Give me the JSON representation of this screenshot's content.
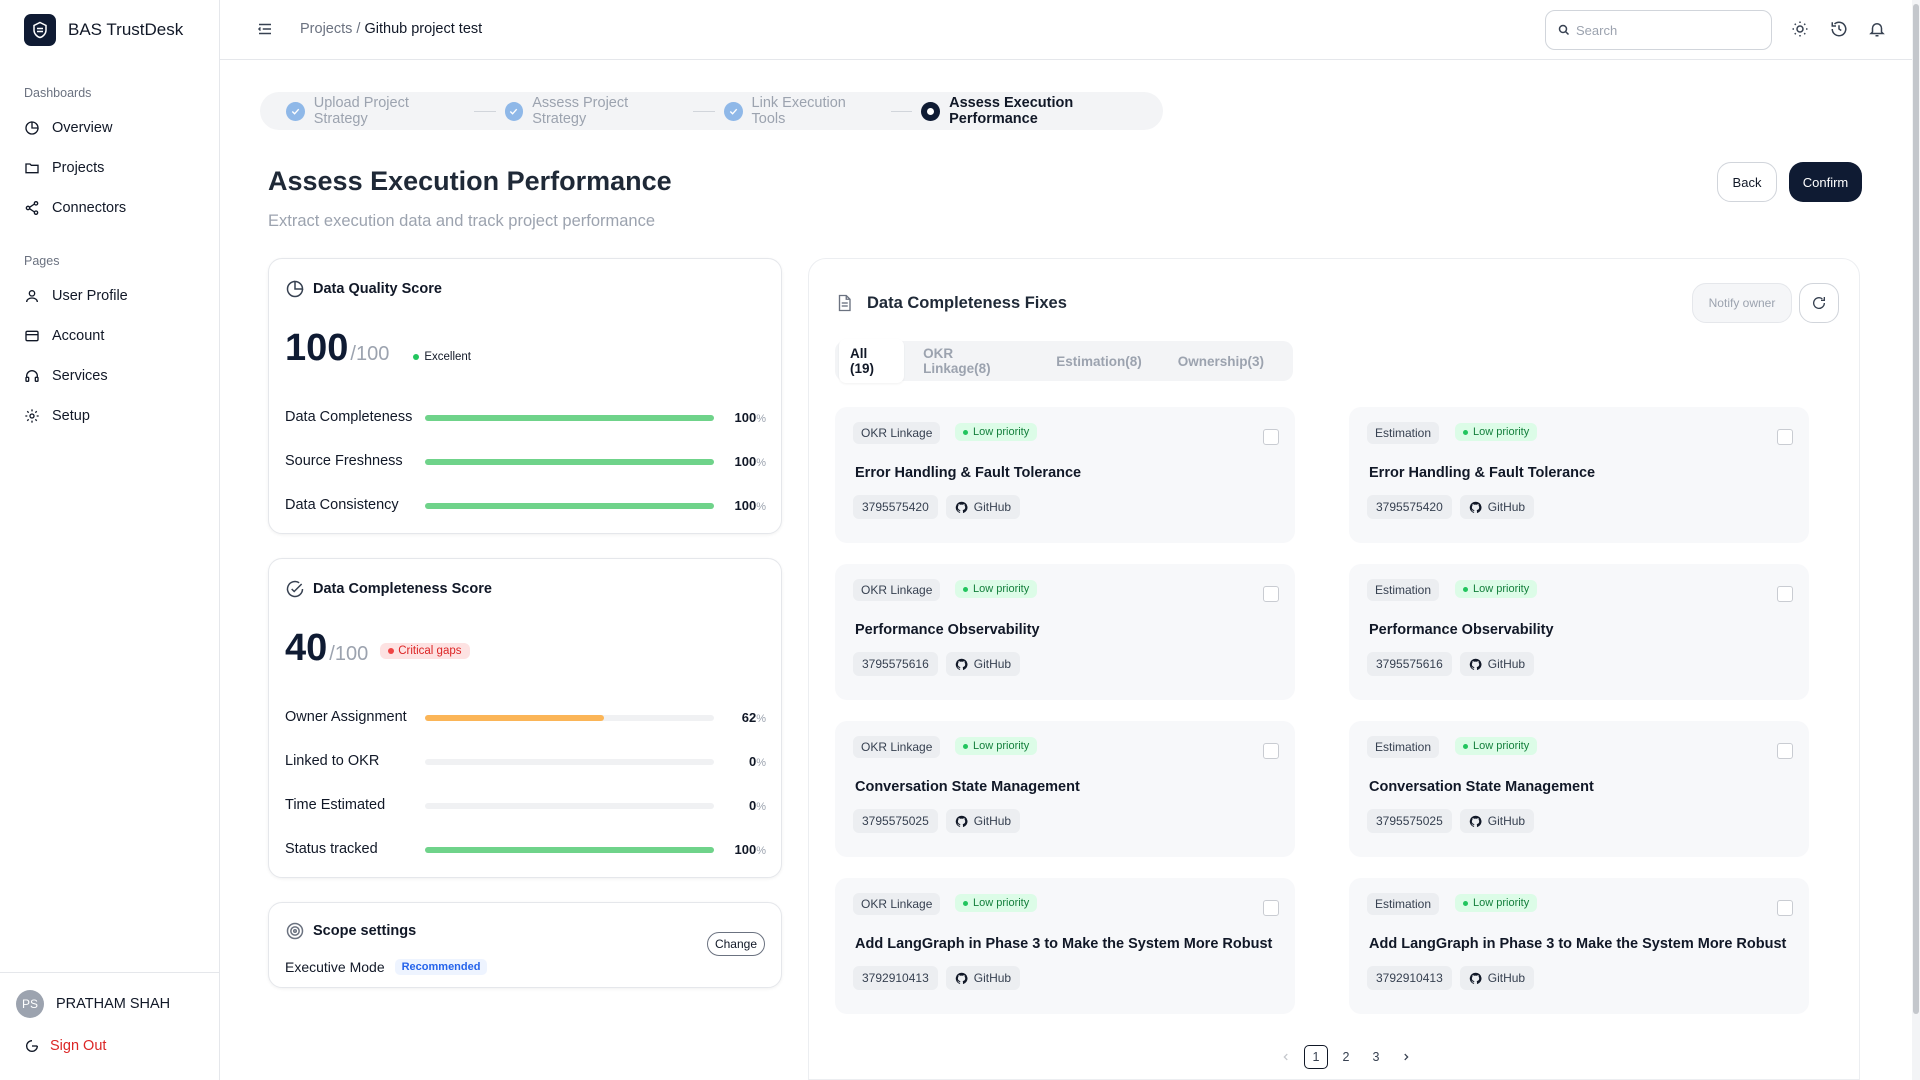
{
  "app": {
    "name": "BAS TrustDesk"
  },
  "sidebar": {
    "sections": [
      {
        "title": "Dashboards",
        "items": [
          {
            "label": "Overview",
            "icon": "pie-chart-icon"
          },
          {
            "label": "Projects",
            "icon": "folder-icon"
          },
          {
            "label": "Connectors",
            "icon": "share-icon"
          }
        ]
      },
      {
        "title": "Pages",
        "items": [
          {
            "label": "User Profile",
            "icon": "user-icon"
          },
          {
            "label": "Account",
            "icon": "card-icon"
          },
          {
            "label": "Services",
            "icon": "headset-icon"
          },
          {
            "label": "Setup",
            "icon": "gear-icon"
          }
        ]
      }
    ],
    "user": {
      "initials": "PS",
      "name": "PRATHAM SHAH"
    },
    "signout": "Sign Out"
  },
  "topbar": {
    "breadcrumb": {
      "parent": "Projects",
      "separator": " / ",
      "current": "Github project test"
    },
    "search_placeholder": "Search"
  },
  "stepper": {
    "steps": [
      {
        "label": "Upload Project Strategy",
        "state": "done"
      },
      {
        "label": "Assess Project Strategy",
        "state": "done"
      },
      {
        "label": "Link Execution Tools",
        "state": "done"
      },
      {
        "label": "Assess Execution Performance",
        "state": "active"
      }
    ]
  },
  "page": {
    "title": "Assess Execution Performance",
    "subtitle": "Extract execution data and track project performance",
    "back_label": "Back",
    "confirm_label": "Confirm"
  },
  "quality": {
    "title": "Data Quality Score",
    "score": "100",
    "out_of": "/100",
    "badge": "Excellent",
    "metrics": [
      {
        "label": "Data Completeness",
        "value": 100,
        "color": "#6fd38a"
      },
      {
        "label": "Source Freshness",
        "value": 100,
        "color": "#6fd38a"
      },
      {
        "label": "Data Consistency",
        "value": 100,
        "color": "#6fd38a"
      }
    ]
  },
  "completeness": {
    "title": "Data Completeness Score",
    "score": "40",
    "out_of": "/100",
    "badge": "Critical gaps",
    "metrics": [
      {
        "label": "Owner Assignment",
        "value": 62,
        "color": "#fbb557"
      },
      {
        "label": "Linked to OKR",
        "value": 0,
        "color": "#6fd38a"
      },
      {
        "label": "Time Estimated",
        "value": 0,
        "color": "#6fd38a"
      },
      {
        "label": "Status tracked",
        "value": 100,
        "color": "#6fd38a"
      }
    ]
  },
  "scope": {
    "title": "Scope settings",
    "mode": "Executive Mode",
    "recommended": "Recommended",
    "change_label": "Change"
  },
  "fixes": {
    "title": "Data Completeness Fixes",
    "notify_label": "Notify owner",
    "tabs": [
      "All (19)",
      "OKR Linkage(8)",
      "Estimation(8)",
      "Ownership(3)"
    ],
    "priority_label": "Low priority",
    "source_label": "GitHub",
    "cards": [
      {
        "category": "OKR Linkage",
        "title": "Error Handling & Fault Tolerance",
        "id": "3795575420"
      },
      {
        "category": "Estimation",
        "title": "Error Handling & Fault Tolerance",
        "id": "3795575420"
      },
      {
        "category": "OKR Linkage",
        "title": "Performance Observability",
        "id": "3795575616"
      },
      {
        "category": "Estimation",
        "title": "Performance Observability",
        "id": "3795575616"
      },
      {
        "category": "OKR Linkage",
        "title": "Conversation State Management",
        "id": "3795575025"
      },
      {
        "category": "Estimation",
        "title": "Conversation State Management",
        "id": "3795575025"
      },
      {
        "category": "OKR Linkage",
        "title": "Add LangGraph in Phase 3 to Make the System More Robust",
        "id": "3792910413"
      },
      {
        "category": "Estimation",
        "title": "Add LangGraph in Phase 3 to Make the System More Robust",
        "id": "3792910413"
      }
    ]
  },
  "pagination": {
    "pages": [
      "1",
      "2",
      "3"
    ],
    "current": "1"
  }
}
